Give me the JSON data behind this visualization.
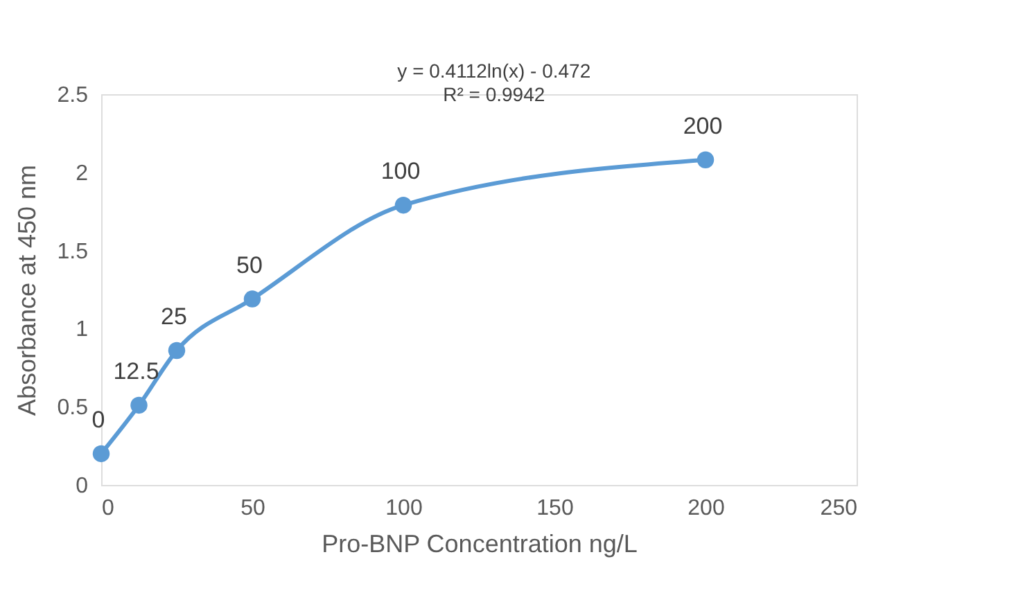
{
  "chart_data": {
    "type": "line",
    "xlabel": "Pro-BNP Concentration ng/L",
    "ylabel": "Absorbance at 450 nm",
    "annotations": [
      "y = 0.4112ln(x) - 0.472",
      "R² = 0.9942",
      {
        "text": "0",
        "x": 0,
        "y": 0.2
      },
      {
        "text": "12.5",
        "x": 12.5,
        "y": 0.51
      },
      {
        "text": "25",
        "x": 25,
        "y": 0.86
      },
      {
        "text": "50",
        "x": 50,
        "y": 1.19
      },
      {
        "text": "100",
        "x": 100,
        "y": 1.79
      },
      {
        "text": "200",
        "x": 200,
        "y": 2.08
      }
    ],
    "x": [
      0,
      12.5,
      25,
      50,
      100,
      200
    ],
    "series": [
      {
        "color": "#5b9bd5",
        "values": [
          0.2,
          0.51,
          0.86,
          1.19,
          1.79,
          2.08
        ]
      }
    ],
    "xlim": [
      0,
      250
    ],
    "xticks": [
      0,
      50,
      100,
      150,
      200,
      250
    ],
    "ylim": [
      0,
      2.5
    ],
    "yticks": [
      0,
      0.5,
      1,
      1.5,
      2,
      2.5
    ],
    "grid": false,
    "marker": "circle",
    "line_style": "solid"
  }
}
